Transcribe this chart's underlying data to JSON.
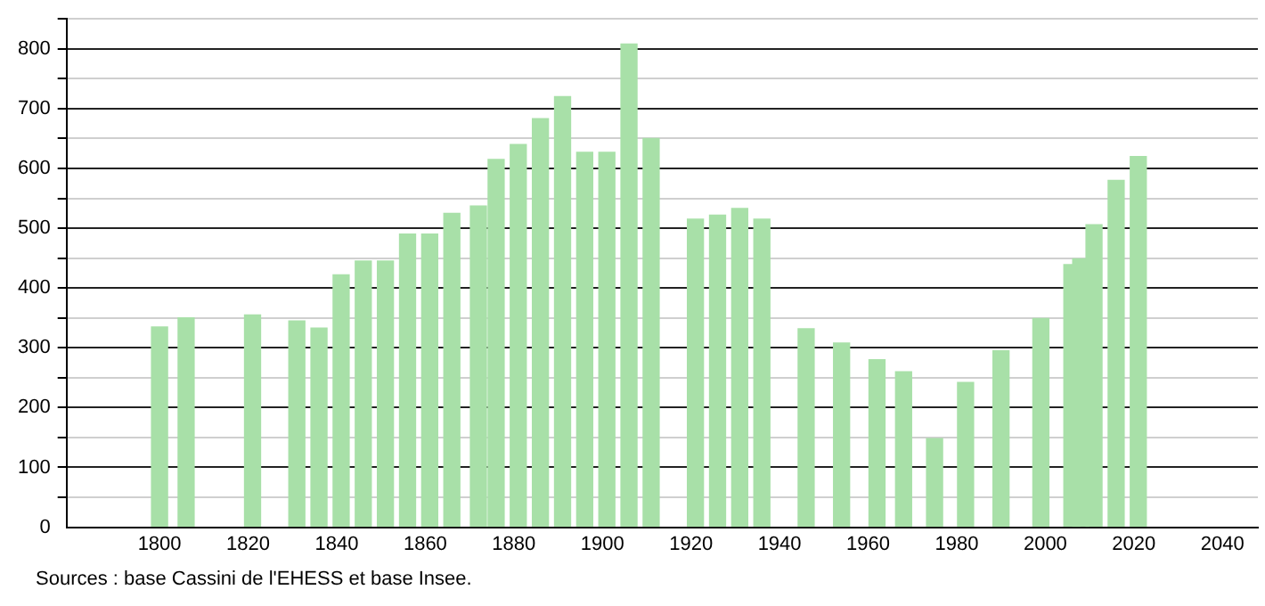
{
  "chart_data": {
    "type": "bar",
    "x": [
      1800,
      1806,
      1821,
      1831,
      1836,
      1841,
      1846,
      1851,
      1856,
      1861,
      1866,
      1872,
      1876,
      1881,
      1886,
      1891,
      1896,
      1901,
      1906,
      1911,
      1921,
      1926,
      1931,
      1936,
      1946,
      1954,
      1962,
      1968,
      1975,
      1982,
      1990,
      1999,
      2006,
      2008,
      2011,
      2016,
      2021
    ],
    "values": [
      335,
      350,
      355,
      345,
      333,
      422,
      445,
      445,
      490,
      490,
      525,
      537,
      615,
      640,
      683,
      720,
      627,
      627,
      808,
      650,
      515,
      522,
      533,
      515,
      332,
      308,
      280,
      260,
      148,
      242,
      295,
      349,
      439,
      449,
      506,
      580,
      620
    ],
    "color": "#a8e0a8",
    "xlim": [
      1779,
      2048
    ],
    "xticks": [
      1800,
      1820,
      1840,
      1860,
      1880,
      1900,
      1920,
      1940,
      1960,
      1980,
      2000,
      2020,
      2040
    ],
    "ylim": [
      0,
      850
    ],
    "yticks": [
      0,
      {
        "value": 50,
        "label": null
      },
      100,
      {
        "value": 150,
        "label": null
      },
      200,
      {
        "value": 250,
        "label": null
      },
      300,
      {
        "value": 350,
        "label": null
      },
      400,
      {
        "value": 450,
        "label": null
      },
      500,
      {
        "value": 550,
        "label": null
      },
      600,
      {
        "value": 650,
        "label": null
      },
      700,
      {
        "value": 750,
        "label": null
      },
      800,
      {
        "value": 850,
        "label": null
      }
    ],
    "grid": "y",
    "legend": false,
    "annotations": [
      "Sources : base Cassini de l'EHESS et base Insee."
    ]
  }
}
